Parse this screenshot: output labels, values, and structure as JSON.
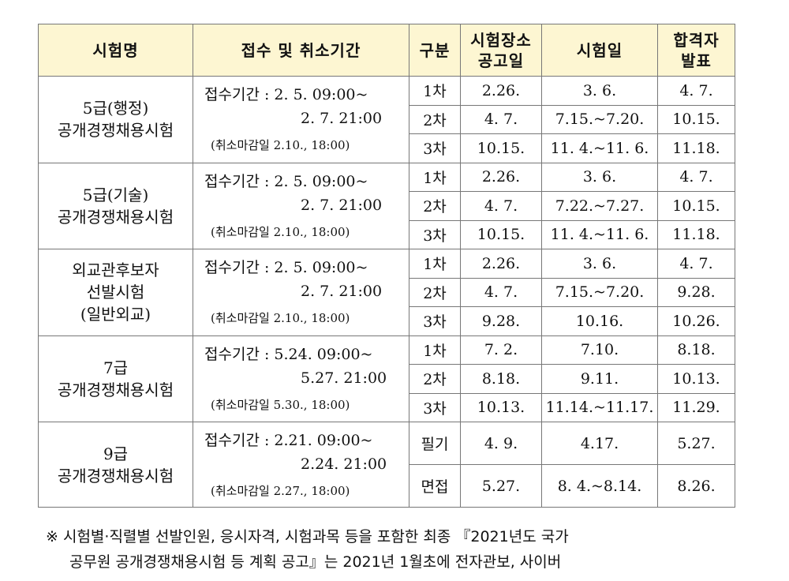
{
  "headers": [
    "시험명",
    "접수 및 취소기간",
    "구분",
    "시험장소\n공고일",
    "시험일",
    "합격자\n발표"
  ],
  "groups": [
    {
      "name": [
        "5급(행정)",
        "공개경쟁채용시험"
      ],
      "reg1": "접수기간 : 2. 5. 09:00~",
      "reg2": "2. 7. 21:00",
      "cancel": "(취소마감일 2.10., 18:00)",
      "rows": [
        {
          "kind": "1차",
          "notice": "2.26.",
          "date": "3. 6.",
          "result": "4. 7."
        },
        {
          "kind": "2차",
          "notice": "4. 7.",
          "date": "7.15.~7.20.",
          "result": "10.15."
        },
        {
          "kind": "3차",
          "notice": "10.15.",
          "date": "11. 4.~11. 6.",
          "result": "11.18."
        }
      ]
    },
    {
      "name": [
        "5급(기술)",
        "공개경쟁채용시험"
      ],
      "reg1": "접수기간 : 2. 5. 09:00~",
      "reg2": "2. 7. 21:00",
      "cancel": "(취소마감일 2.10., 18:00)",
      "rows": [
        {
          "kind": "1차",
          "notice": "2.26.",
          "date": "3. 6.",
          "result": "4. 7."
        },
        {
          "kind": "2차",
          "notice": "4. 7.",
          "date": "7.22.~7.27.",
          "result": "10.15."
        },
        {
          "kind": "3차",
          "notice": "10.15.",
          "date": "11. 4.~11. 6.",
          "result": "11.18."
        }
      ]
    },
    {
      "name": [
        "외교관후보자",
        "선발시험",
        "(일반외교)"
      ],
      "reg1": "접수기간 : 2. 5. 09:00~",
      "reg2": "2. 7. 21:00",
      "cancel": "(취소마감일 2.10., 18:00)",
      "rows": [
        {
          "kind": "1차",
          "notice": "2.26.",
          "date": "3. 6.",
          "result": "4. 7."
        },
        {
          "kind": "2차",
          "notice": "4. 7.",
          "date": "7.15.~7.20.",
          "result": "9.28."
        },
        {
          "kind": "3차",
          "notice": "9.28.",
          "date": "10.16.",
          "result": "10.26."
        }
      ]
    },
    {
      "name": [
        "7급",
        "공개경쟁채용시험"
      ],
      "reg1": "접수기간 : 5.24. 09:00~",
      "reg2": "5.27. 21:00",
      "cancel": "(취소마감일 5.30., 18:00)",
      "rows": [
        {
          "kind": "1차",
          "notice": "7. 2.",
          "date": "7.10.",
          "result": "8.18."
        },
        {
          "kind": "2차",
          "notice": "8.18.",
          "date": "9.11.",
          "result": "10.13."
        },
        {
          "kind": "3차",
          "notice": "10.13.",
          "date": "11.14.~11.17.",
          "result": "11.29."
        }
      ]
    },
    {
      "name": [
        "9급",
        "공개경쟁채용시험"
      ],
      "reg1": "접수기간 : 2.21. 09:00~",
      "reg2": "2.24. 21:00",
      "cancel": "(취소마감일 2.27., 18:00)",
      "rows": [
        {
          "kind": "필기",
          "notice": "4. 9.",
          "date": "4.17.",
          "result": "5.27."
        },
        {
          "kind": "면접",
          "notice": "5.27.",
          "date": "8. 4.~8.14.",
          "result": "8.26."
        }
      ]
    }
  ],
  "note": {
    "line1": "※ 시험별·직렬별 선발인원, 응시자격, 시험과목 등을 포함한 최종 『2021년도 국가",
    "line2": "공무원 공개경쟁채용시험 등 계획 공고』는 2021년 1월초에 전자관보, 사이버"
  }
}
